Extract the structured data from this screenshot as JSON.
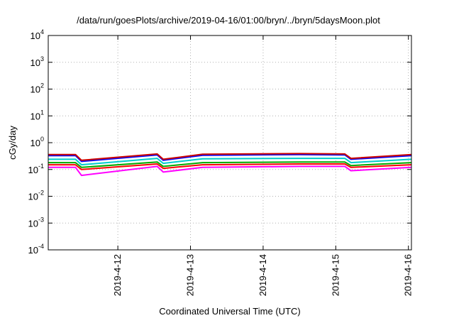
{
  "chart_data": {
    "type": "line",
    "title": "/data/run/goesPlots/archive/2019-04-16/01:00/bryn/../bryn/5daysMoon.plot",
    "xlabel": "Coordinated Universal Time (UTC)",
    "ylabel": "cGy/day",
    "y_scale": "log",
    "ylim": [
      0.0001,
      10000
    ],
    "y_ticks": [
      {
        "base": "10",
        "exp": "-4"
      },
      {
        "base": "10",
        "exp": "-3"
      },
      {
        "base": "10",
        "exp": "-2"
      },
      {
        "base": "10",
        "exp": "-1"
      },
      {
        "base": "10",
        "exp": "0"
      },
      {
        "base": "10",
        "exp": "1"
      },
      {
        "base": "10",
        "exp": "2"
      },
      {
        "base": "10",
        "exp": "3"
      },
      {
        "base": "10",
        "exp": "4"
      }
    ],
    "xlim": [
      "2019-04-11 01:00",
      "2019-04-16 01:00"
    ],
    "x_ticks": [
      "2019-4-12",
      "2019-4-13",
      "2019-4-14",
      "2019-4-15",
      "2019-4-16"
    ],
    "grid": true,
    "x": [
      "2019-04-11 01:00",
      "2019-04-11 10:00",
      "2019-04-11 12:00",
      "2019-04-12 13:00",
      "2019-04-12 15:00",
      "2019-04-13 04:00",
      "2019-04-14 12:00",
      "2019-04-15 03:00",
      "2019-04-15 05:00",
      "2019-04-16 01:00"
    ],
    "series": [
      {
        "color": "#ff00ff",
        "values": [
          0.12,
          0.12,
          0.06,
          0.13,
          0.08,
          0.12,
          0.13,
          0.13,
          0.09,
          0.12
        ]
      },
      {
        "color": "#ff0000",
        "values": [
          0.15,
          0.15,
          0.1,
          0.16,
          0.11,
          0.15,
          0.16,
          0.16,
          0.12,
          0.15
        ]
      },
      {
        "color": "#00aa00",
        "values": [
          0.18,
          0.18,
          0.12,
          0.19,
          0.13,
          0.18,
          0.19,
          0.19,
          0.14,
          0.18
        ]
      },
      {
        "color": "#00cccc",
        "values": [
          0.24,
          0.24,
          0.15,
          0.26,
          0.17,
          0.25,
          0.26,
          0.26,
          0.18,
          0.24
        ]
      },
      {
        "color": "#0000ff",
        "values": [
          0.33,
          0.33,
          0.2,
          0.35,
          0.22,
          0.34,
          0.36,
          0.35,
          0.24,
          0.33
        ]
      },
      {
        "color": "#cc0000",
        "values": [
          0.36,
          0.36,
          0.22,
          0.38,
          0.24,
          0.37,
          0.39,
          0.38,
          0.26,
          0.36
        ]
      }
    ]
  }
}
